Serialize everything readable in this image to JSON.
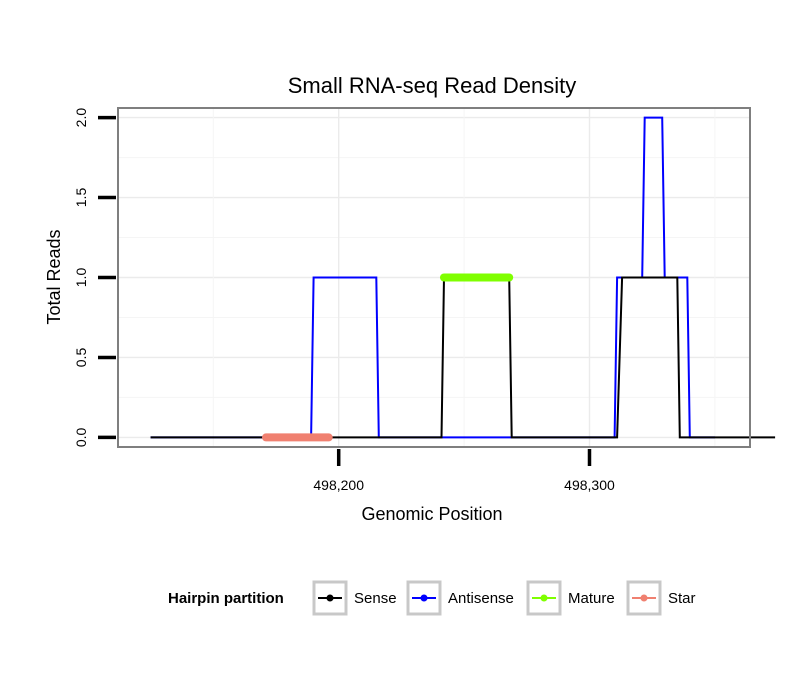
{
  "chart_data": {
    "type": "line",
    "title": "Small RNA-seq Read Density",
    "xlabel": "Genomic Position",
    "ylabel": "Total Reads",
    "xlim": [
      498112,
      498364
    ],
    "ylim": [
      -0.06,
      2.06
    ],
    "x_ticks": [
      {
        "value": 498200,
        "label": "498,200"
      },
      {
        "value": 498300,
        "label": "498,300"
      }
    ],
    "y_ticks": [
      {
        "value": 0,
        "label": "0.0"
      },
      {
        "value": 0.5,
        "label": "0.5"
      },
      {
        "value": 1,
        "label": "1.0"
      },
      {
        "value": 1.5,
        "label": "1.5"
      },
      {
        "value": 2,
        "label": "2.0"
      }
    ],
    "grid": true,
    "series": [
      {
        "name": "Antisense",
        "color": "#0000ff",
        "style": "line",
        "x": [
          498125,
          498189,
          498190,
          498215,
          498216,
          498241,
          498268,
          498310,
          498311,
          498321,
          498322,
          498329,
          498330,
          498339,
          498340,
          498350
        ],
        "y": [
          0,
          0,
          1,
          1,
          0,
          0,
          0,
          0,
          1,
          1,
          2,
          2,
          1,
          1,
          0,
          0
        ]
      },
      {
        "name": "Sense",
        "color": "#000000",
        "style": "line",
        "x": [
          498125,
          498241,
          498242,
          498268,
          498269,
          498311,
          498313,
          498335,
          498336,
          498374
        ],
        "y": [
          0,
          0,
          1,
          1,
          0,
          0,
          1,
          1,
          0,
          0
        ]
      },
      {
        "name": "Mature",
        "color": "#7fff00",
        "style": "segment",
        "x": [
          498242,
          498268
        ],
        "y": [
          1,
          1
        ]
      },
      {
        "name": "Star",
        "color": "#f08070",
        "style": "segment",
        "x": [
          498171,
          498196
        ],
        "y": [
          0,
          0
        ]
      }
    ],
    "legend": {
      "title": "Hairpin partition",
      "position": "bottom",
      "items": [
        {
          "label": "Sense",
          "color": "#000000"
        },
        {
          "label": "Antisense",
          "color": "#0000ff"
        },
        {
          "label": "Mature",
          "color": "#7fff00"
        },
        {
          "label": "Star",
          "color": "#f08070"
        }
      ]
    }
  }
}
